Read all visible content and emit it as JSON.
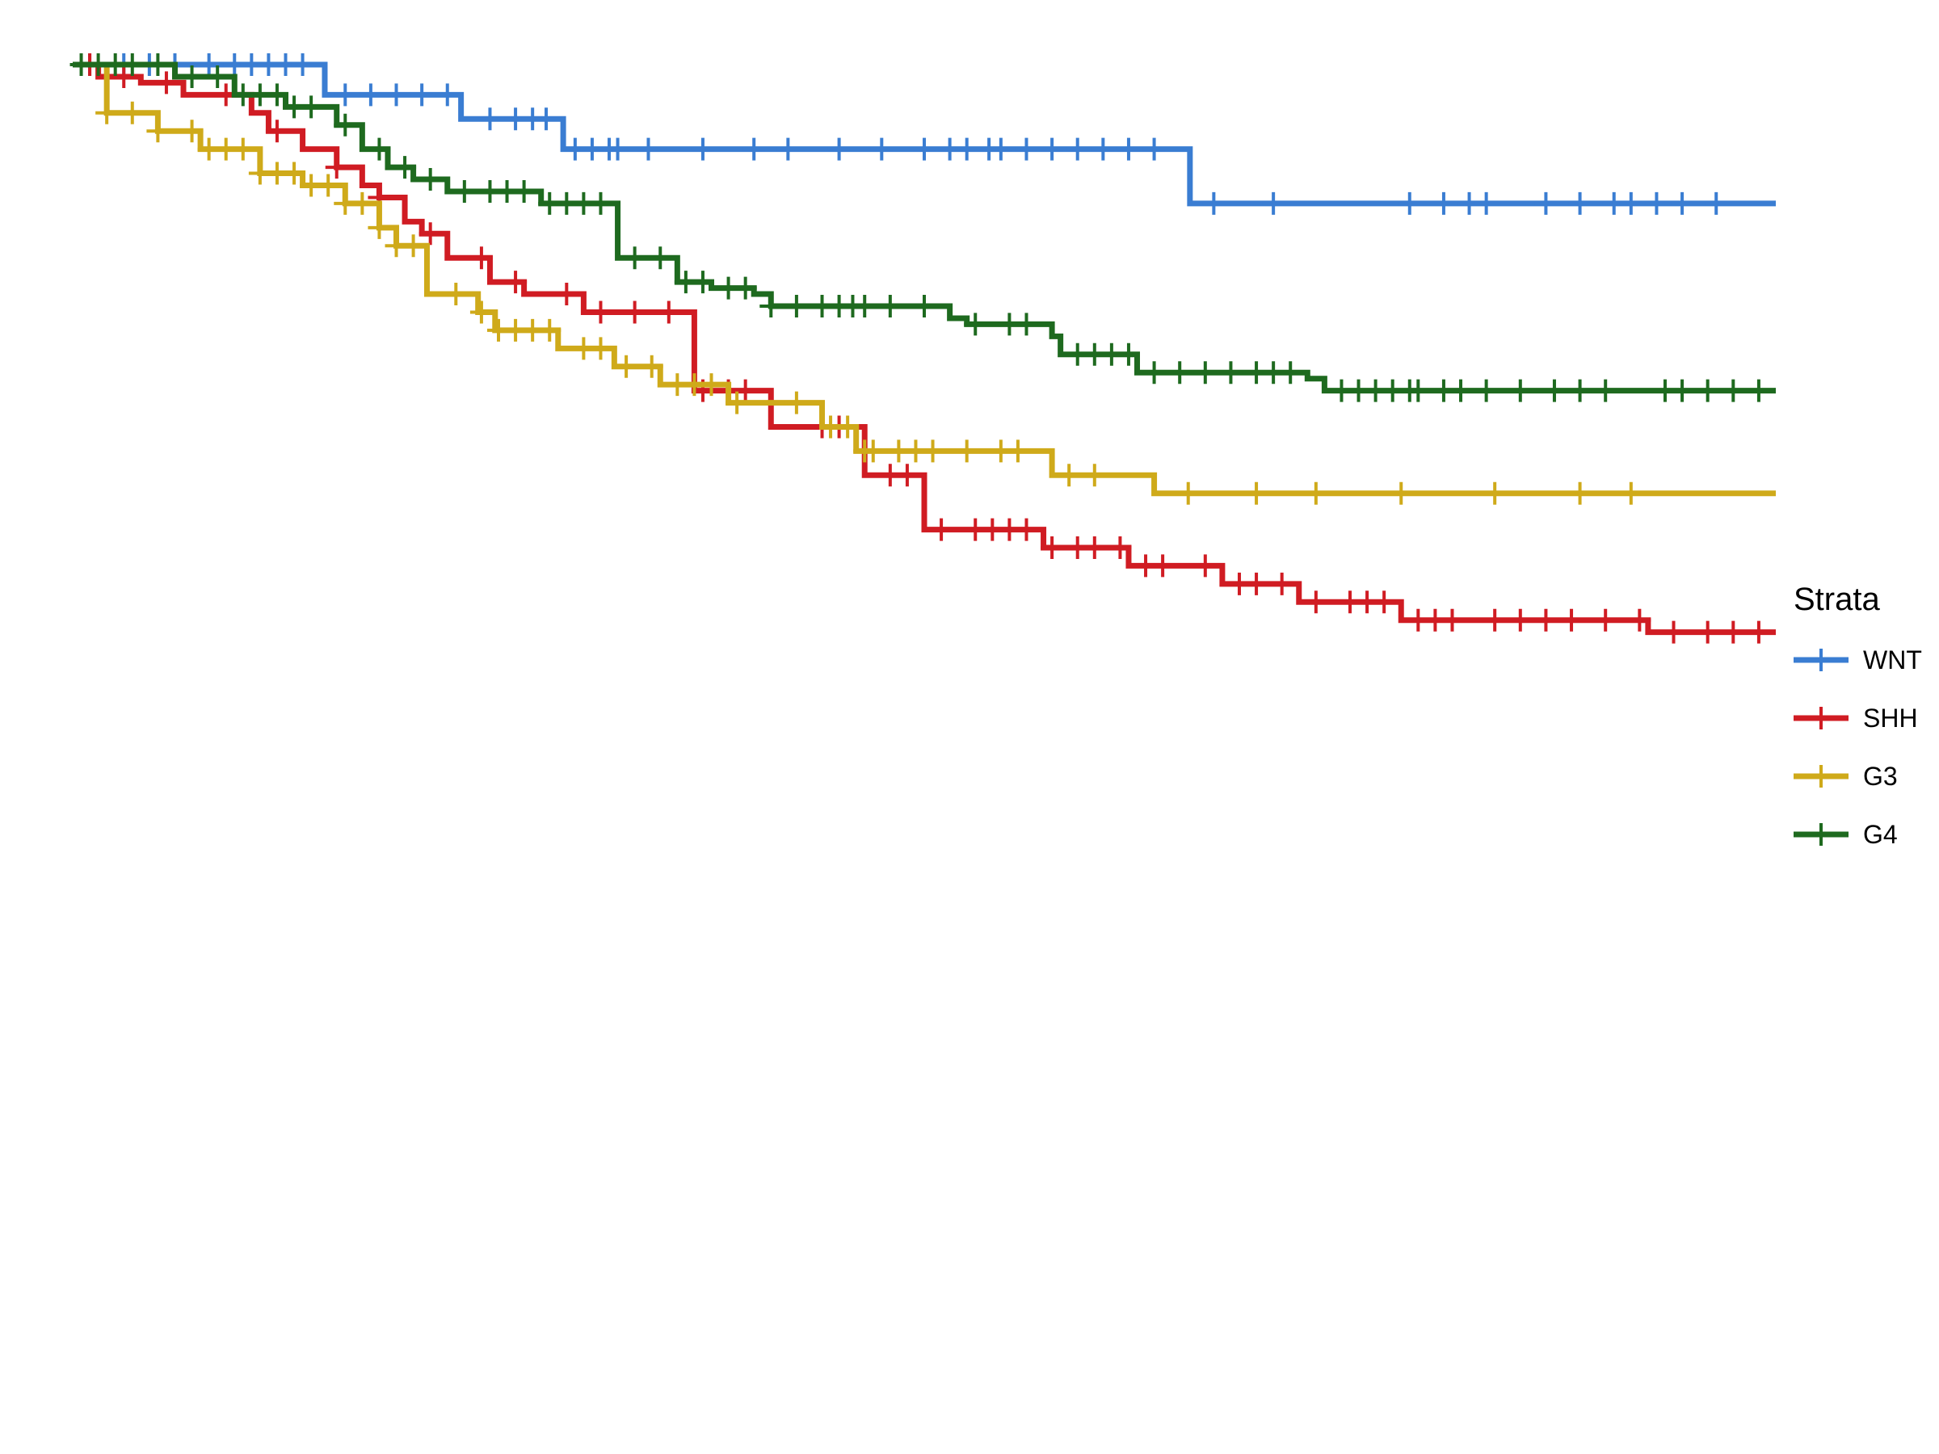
{
  "chart_data": {
    "type": "line",
    "title": "",
    "xlabel": "",
    "ylabel": "",
    "xlim": [
      0,
      100
    ],
    "ylim": [
      0,
      1
    ],
    "grid": false,
    "legend": {
      "title": "Strata",
      "position": "right"
    },
    "series": [
      {
        "name": "WNT",
        "color": "#3A7DD2",
        "steps": [
          [
            0,
            1.0
          ],
          [
            14.8,
            0.975
          ],
          [
            22.8,
            0.955
          ],
          [
            28.8,
            0.93
          ],
          [
            65.6,
            0.885
          ],
          [
            100,
            0.885
          ]
        ],
        "censors": [
          1,
          3,
          4.5,
          6,
          8,
          9.5,
          10.5,
          11.5,
          12.5,
          13.5,
          16,
          17.5,
          19,
          20.5,
          22,
          24.5,
          26,
          27,
          27.8,
          29.5,
          30.5,
          31.5,
          32,
          33.8,
          37,
          40,
          42,
          45,
          47.5,
          50,
          51.5,
          52.5,
          53.8,
          54.5,
          56,
          57.5,
          59,
          60.5,
          62,
          63.5,
          67,
          70.5,
          78.5,
          80.5,
          82,
          83,
          86.5,
          88.5,
          90.5,
          91.5,
          93,
          94.5,
          96.5
        ]
      },
      {
        "name": "SHH",
        "color": "#D01C23",
        "steps": [
          [
            0,
            1.0
          ],
          [
            1.5,
            0.99
          ],
          [
            4,
            0.985
          ],
          [
            6.5,
            0.975
          ],
          [
            10.5,
            0.96
          ],
          [
            11.5,
            0.945
          ],
          [
            13.5,
            0.93
          ],
          [
            15.5,
            0.915
          ],
          [
            17,
            0.9
          ],
          [
            18,
            0.89
          ],
          [
            19.5,
            0.87
          ],
          [
            20.5,
            0.86
          ],
          [
            22,
            0.84
          ],
          [
            24.5,
            0.82
          ],
          [
            26.5,
            0.81
          ],
          [
            30,
            0.795
          ],
          [
            36.5,
            0.73
          ],
          [
            41,
            0.7
          ],
          [
            46.5,
            0.66
          ],
          [
            50,
            0.615
          ],
          [
            57,
            0.6
          ],
          [
            62,
            0.585
          ],
          [
            67.5,
            0.57
          ],
          [
            72,
            0.555
          ],
          [
            78,
            0.54
          ],
          [
            92.5,
            0.53
          ],
          [
            98.5,
            0.53
          ],
          [
            100,
            0.53
          ]
        ],
        "censors": [
          1,
          3,
          5.5,
          9,
          12,
          15.5,
          18,
          21,
          24,
          26,
          29,
          31,
          33,
          35,
          37,
          38.5,
          39.5,
          44,
          45,
          48,
          49,
          51,
          53,
          54,
          55,
          56,
          57.5,
          59,
          60,
          61.5,
          63,
          64,
          66.5,
          68.5,
          69.5,
          71,
          73,
          75,
          76,
          77,
          79,
          80,
          81,
          83.5,
          85,
          86.5,
          88,
          90,
          92,
          94,
          96,
          97.5,
          99
        ]
      },
      {
        "name": "G3",
        "color": "#CFAA1A",
        "steps": [
          [
            0,
            1.0
          ],
          [
            2,
            0.96
          ],
          [
            5,
            0.945
          ],
          [
            7.5,
            0.93
          ],
          [
            11,
            0.91
          ],
          [
            13.5,
            0.9
          ],
          [
            16,
            0.885
          ],
          [
            18,
            0.865
          ],
          [
            19,
            0.85
          ],
          [
            20.8,
            0.81
          ],
          [
            23.8,
            0.795
          ],
          [
            24.8,
            0.78
          ],
          [
            28.5,
            0.765
          ],
          [
            31.8,
            0.75
          ],
          [
            34.5,
            0.735
          ],
          [
            38.5,
            0.72
          ],
          [
            44,
            0.7
          ],
          [
            46,
            0.68
          ],
          [
            57.5,
            0.66
          ],
          [
            63.5,
            0.645
          ],
          [
            100,
            0.645
          ]
        ],
        "censors": [
          2,
          3.5,
          5,
          7,
          8,
          9,
          10,
          11,
          12,
          13,
          14,
          15,
          16,
          17,
          18,
          19,
          20,
          22.5,
          24,
          25,
          26,
          27,
          28,
          30,
          31,
          32.5,
          34,
          35.5,
          36.5,
          37.5,
          39,
          42.5,
          44.5,
          45.5,
          46.5,
          47,
          48.5,
          49.5,
          50.5,
          52.5,
          54.5,
          55.5,
          58.5,
          60,
          65.5,
          69.5,
          73,
          78,
          83.5,
          88.5,
          91.5
        ]
      },
      {
        "name": "G4",
        "color": "#1E6A1F",
        "steps": [
          [
            0,
            1.0
          ],
          [
            6,
            0.99
          ],
          [
            9.5,
            0.975
          ],
          [
            12.5,
            0.965
          ],
          [
            15.5,
            0.95
          ],
          [
            17,
            0.93
          ],
          [
            18.5,
            0.915
          ],
          [
            20,
            0.905
          ],
          [
            22,
            0.895
          ],
          [
            27.5,
            0.885
          ],
          [
            32,
            0.84
          ],
          [
            35.5,
            0.82
          ],
          [
            37.5,
            0.815
          ],
          [
            40,
            0.81
          ],
          [
            41,
            0.8
          ],
          [
            51.5,
            0.79
          ],
          [
            52.5,
            0.785
          ],
          [
            57.5,
            0.775
          ],
          [
            58,
            0.76
          ],
          [
            62.5,
            0.745
          ],
          [
            72.5,
            0.74
          ],
          [
            73.5,
            0.73
          ],
          [
            100,
            0.73
          ]
        ],
        "censors": [
          0.5,
          1.5,
          2.5,
          3.5,
          5,
          7,
          8.5,
          10,
          11,
          12,
          13,
          14,
          16,
          18,
          19.5,
          21,
          23,
          24.5,
          25.5,
          26.5,
          28,
          29,
          30,
          31,
          33,
          34.5,
          36,
          37,
          38.5,
          39.5,
          41,
          42.5,
          44,
          45,
          45.8,
          46.5,
          48,
          50,
          53,
          55,
          56,
          59,
          60,
          61,
          62,
          63.5,
          65,
          66.5,
          68,
          69.5,
          70.5,
          71.5,
          74.5,
          75.5,
          76.5,
          77.5,
          78.5,
          79,
          80.5,
          81.5,
          83,
          85,
          87,
          88.5,
          90,
          93.5,
          94.5,
          96,
          97.5,
          99
        ]
      }
    ]
  }
}
